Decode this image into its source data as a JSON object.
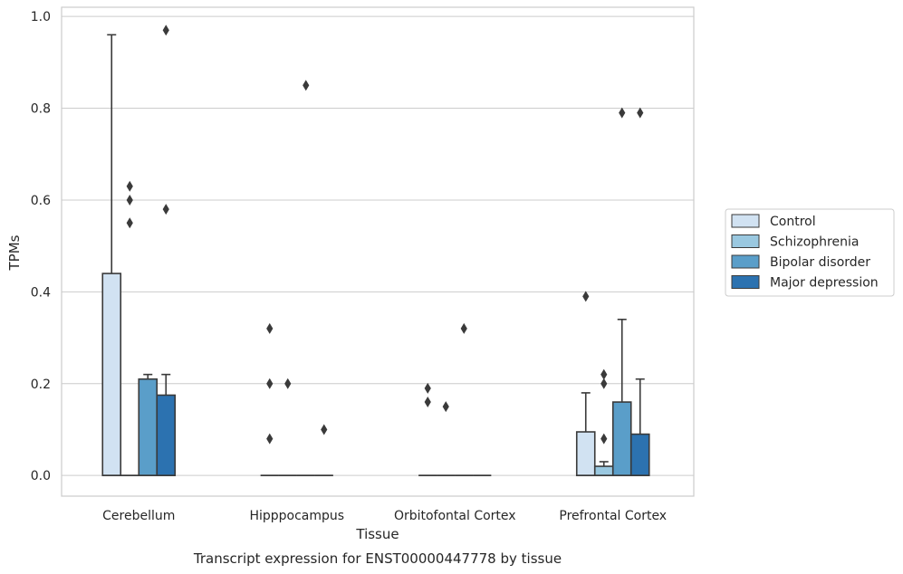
{
  "caption": "Transcript expression for ENST00000447778 by tissue",
  "chart_data": {
    "type": "bar",
    "subtype": "boxplot",
    "xlabel": "Tissue",
    "ylabel": "TPMs",
    "ylim": [
      -0.045,
      1.02
    ],
    "yticks": [
      "0.0",
      "0.2",
      "0.4",
      "0.6",
      "0.8",
      "1.0"
    ],
    "ytick_values": [
      0,
      0.2,
      0.4,
      0.6,
      0.8,
      1.0
    ],
    "grid": true,
    "legend_position": "right",
    "categories": [
      "Cerebellum",
      "Hipppocampus",
      "Orbitofontal Cortex",
      "Prefrontal Cortex"
    ],
    "series": [
      {
        "name": "Control",
        "color": "#d1e2f2",
        "boxes": [
          {
            "q1": 0,
            "median": 0,
            "q3": 0.44,
            "whisker_low": 0,
            "whisker_high": 0.96,
            "outliers": []
          },
          {
            "q1": 0,
            "median": 0,
            "q3": 0,
            "whisker_low": 0,
            "whisker_high": 0,
            "outliers": [
              0.32,
              0.2,
              0.08
            ]
          },
          {
            "q1": 0,
            "median": 0,
            "q3": 0,
            "whisker_low": 0,
            "whisker_high": 0,
            "outliers": [
              0.19,
              0.16
            ]
          },
          {
            "q1": 0,
            "median": 0,
            "q3": 0.095,
            "whisker_low": 0,
            "whisker_high": 0.18,
            "outliers": [
              0.39
            ]
          }
        ]
      },
      {
        "name": "Schizophrenia",
        "color": "#9ac8e0",
        "boxes": [
          {
            "q1": 0,
            "median": 0,
            "q3": 0,
            "whisker_low": 0,
            "whisker_high": 0,
            "outliers": [
              0.63,
              0.6,
              0.55
            ]
          },
          {
            "q1": 0,
            "median": 0,
            "q3": 0,
            "whisker_low": 0,
            "whisker_high": 0,
            "outliers": [
              0.2
            ]
          },
          {
            "q1": 0,
            "median": 0,
            "q3": 0,
            "whisker_low": 0,
            "whisker_high": 0,
            "outliers": [
              0.15
            ]
          },
          {
            "q1": 0,
            "median": 0,
            "q3": 0.02,
            "whisker_low": 0,
            "whisker_high": 0.03,
            "outliers": [
              0.22,
              0.2,
              0.08
            ]
          }
        ]
      },
      {
        "name": "Bipolar disorder",
        "color": "#5a9ec9",
        "boxes": [
          {
            "q1": 0,
            "median": 0,
            "q3": 0.21,
            "whisker_low": 0,
            "whisker_high": 0.22,
            "outliers": []
          },
          {
            "q1": 0,
            "median": 0,
            "q3": 0,
            "whisker_low": 0,
            "whisker_high": 0,
            "outliers": [
              0.85
            ]
          },
          {
            "q1": 0,
            "median": 0,
            "q3": 0,
            "whisker_low": 0,
            "whisker_high": 0,
            "outliers": [
              0.32
            ]
          },
          {
            "q1": 0,
            "median": 0,
            "q3": 0.16,
            "whisker_low": 0,
            "whisker_high": 0.34,
            "outliers": [
              0.79
            ]
          }
        ]
      },
      {
        "name": "Major depression",
        "color": "#2c72b0",
        "boxes": [
          {
            "q1": 0,
            "median": 0,
            "q3": 0.175,
            "whisker_low": 0,
            "whisker_high": 0.22,
            "outliers": [
              0.97,
              0.58
            ]
          },
          {
            "q1": 0,
            "median": 0,
            "q3": 0,
            "whisker_low": 0,
            "whisker_high": 0,
            "outliers": [
              0.1
            ]
          },
          {
            "q1": 0,
            "median": 0,
            "q3": 0,
            "whisker_low": 0,
            "whisker_high": 0,
            "outliers": []
          },
          {
            "q1": 0,
            "median": 0,
            "q3": 0.09,
            "whisker_low": 0,
            "whisker_high": 0.21,
            "outliers": [
              0.79
            ]
          }
        ]
      }
    ],
    "colors": {
      "grid": "#cccccc",
      "frame": "#cccccc",
      "edge": "#3a3a3a",
      "marker": "#3a3a3a"
    }
  }
}
